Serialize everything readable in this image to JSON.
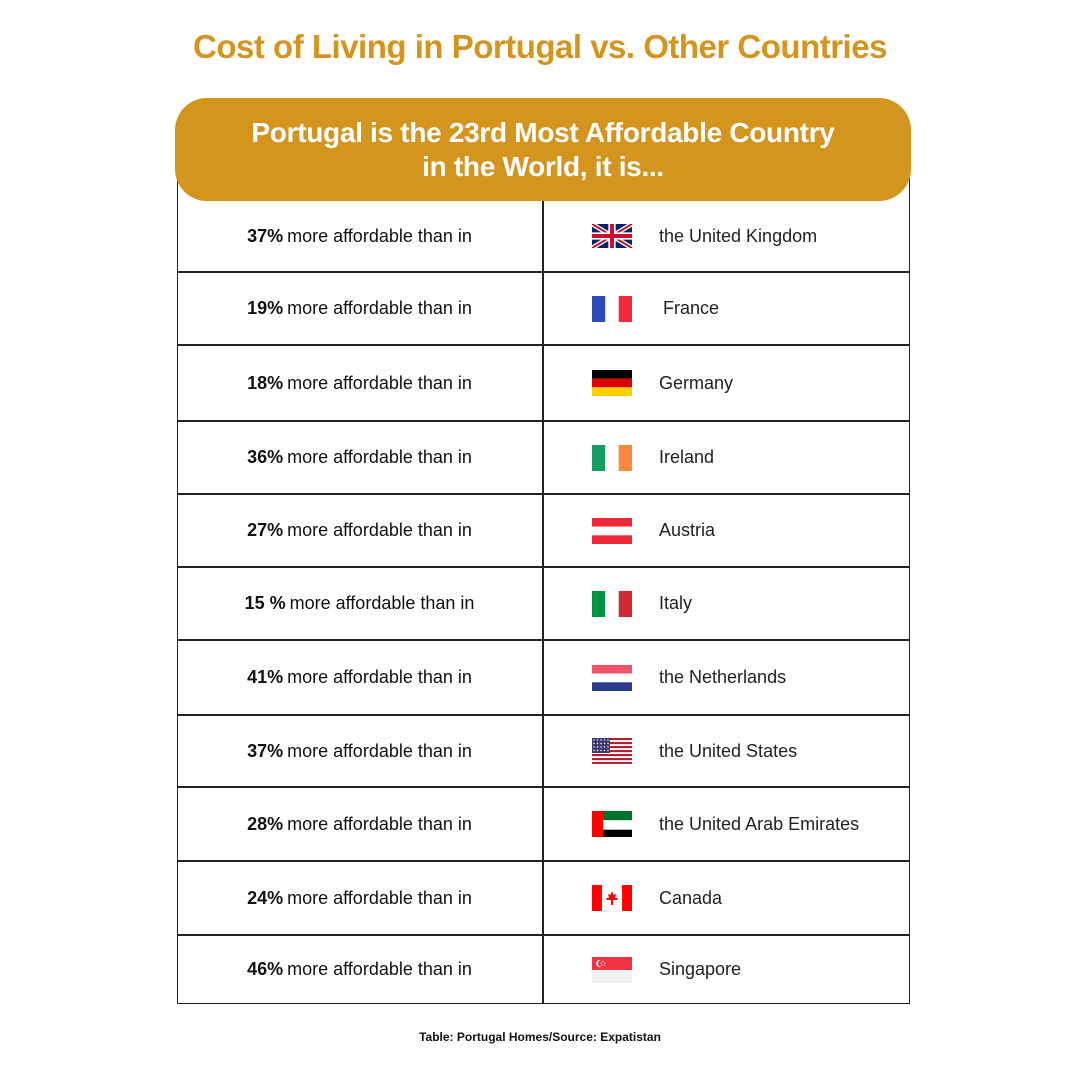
{
  "title": "Cost of Living in Portugal vs. Other Countries",
  "banner": {
    "line1": "Portugal is the 23rd Most Affordable Country",
    "line2": "in the World, it is..."
  },
  "footer": "Table: Portugal Homes/Source: Expatistan",
  "colors": {
    "accent": "#d4951f",
    "border": "#222222"
  },
  "chart_data": {
    "type": "table",
    "title": "Cost of Living in Portugal vs. Other Countries",
    "subtitle": "Portugal is the 23rd Most Affordable Country in the World, it is...",
    "columns": [
      "percent",
      "country"
    ],
    "rows": [
      {
        "percent": "37%",
        "suffix": "more affordable than in",
        "country": "the United Kingdom",
        "flag": "uk-flag-icon"
      },
      {
        "percent": "19%",
        "suffix": "more affordable than in",
        "country": "France",
        "flag": "france-flag-icon"
      },
      {
        "percent": "18%",
        "suffix": "more affordable than in",
        "country": "Germany",
        "flag": "germany-flag-icon"
      },
      {
        "percent": "36%",
        "suffix": "more affordable than in",
        "country": "Ireland",
        "flag": "ireland-flag-icon"
      },
      {
        "percent": "27%",
        "suffix": "more affordable than in",
        "country": "Austria",
        "flag": "austria-flag-icon"
      },
      {
        "percent": "15 %",
        "suffix": "more affordable than in",
        "country": "Italy",
        "flag": "italy-flag-icon"
      },
      {
        "percent": "41%",
        "suffix": "more affordable than in",
        "country": "the Netherlands",
        "flag": "netherlands-flag-icon"
      },
      {
        "percent": "37%",
        "suffix": "more affordable than in",
        "country": "the United States",
        "flag": "usa-flag-icon"
      },
      {
        "percent": "28%",
        "suffix": "more affordable than in",
        "country": "the United Arab Emirates",
        "flag": "uae-flag-icon"
      },
      {
        "percent": "24%",
        "suffix": "more affordable than in",
        "country": "Canada",
        "flag": "canada-flag-icon"
      },
      {
        "percent": "46%",
        "suffix": "more affordable than in",
        "country": "Singapore",
        "flag": "singapore-flag-icon"
      }
    ]
  }
}
